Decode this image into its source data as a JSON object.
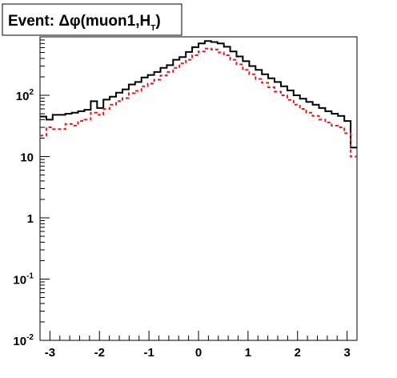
{
  "chart_data": {
    "type": "line",
    "subtype": "step-histogram",
    "title": "Event: Δφ(muon1,",
    "title_tail": "H",
    "title_sub": "T",
    "title_close": ")",
    "xlabel": "",
    "ylabel": "",
    "xlim": [
      -3.2,
      3.2
    ],
    "ylim": [
      0.01,
      900
    ],
    "yscale": "log",
    "grid": false,
    "legend": "none",
    "x_ticks": [
      {
        "value": -3,
        "label": "-3"
      },
      {
        "value": -2,
        "label": "-2"
      },
      {
        "value": -1,
        "label": "-1"
      },
      {
        "value": 0,
        "label": "0"
      },
      {
        "value": 1,
        "label": "1"
      },
      {
        "value": 2,
        "label": "2"
      },
      {
        "value": 3,
        "label": "3"
      }
    ],
    "y_ticks": [
      {
        "value": 0.01,
        "base": "10",
        "exp": "-2"
      },
      {
        "value": 0.1,
        "base": "10",
        "exp": "-1"
      },
      {
        "value": 1,
        "base": "1",
        "exp": ""
      },
      {
        "value": 10,
        "base": "10",
        "exp": ""
      },
      {
        "value": 100,
        "base": "10",
        "exp": "2"
      }
    ],
    "bin_edges_range": [
      -3.2,
      3.2
    ],
    "bins": 50,
    "series": [
      {
        "color": "#000000",
        "style": "solid",
        "values": [
          45,
          40,
          48,
          48,
          50,
          52,
          55,
          58,
          80,
          62,
          85,
          95,
          110,
          125,
          150,
          165,
          195,
          215,
          240,
          280,
          310,
          380,
          420,
          510,
          610,
          700,
          770,
          740,
          700,
          620,
          520,
          430,
          360,
          300,
          260,
          220,
          190,
          165,
          140,
          120,
          100,
          88,
          78,
          70,
          62,
          55,
          50,
          46,
          38,
          14
        ]
      },
      {
        "color": "#e41a1c",
        "style": "dashed",
        "values": [
          22,
          30,
          28,
          28,
          34,
          32,
          38,
          40,
          52,
          48,
          60,
          70,
          80,
          90,
          108,
          118,
          140,
          155,
          180,
          210,
          240,
          280,
          330,
          380,
          450,
          520,
          580,
          560,
          500,
          450,
          380,
          320,
          260,
          220,
          185,
          160,
          135,
          115,
          100,
          84,
          70,
          60,
          52,
          46,
          40,
          36,
          32,
          30,
          24,
          10
        ]
      }
    ]
  }
}
